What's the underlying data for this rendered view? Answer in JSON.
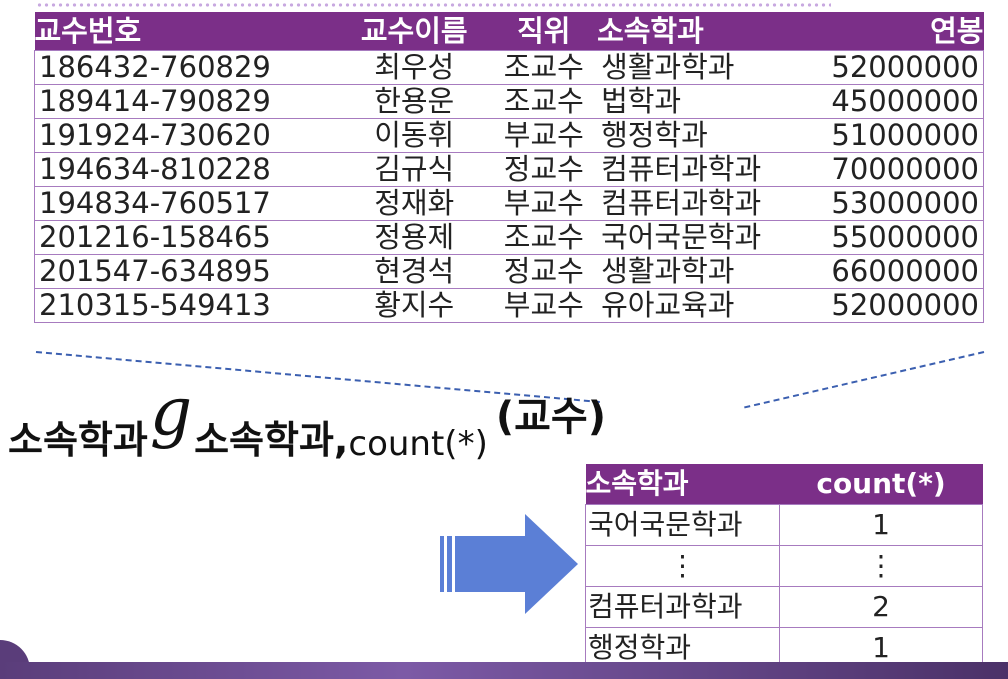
{
  "source_table": {
    "headers": [
      "교수번호",
      "교수이름",
      "직위",
      "소속학과",
      "연봉"
    ],
    "rows": [
      [
        "186432-760829",
        "최우성",
        "조교수",
        "생활과학과",
        "52000000"
      ],
      [
        "189414-790829",
        "한용운",
        "조교수",
        "법학과",
        "45000000"
      ],
      [
        "191924-730620",
        "이동휘",
        "부교수",
        "행정학과",
        "51000000"
      ],
      [
        "194634-810228",
        "김규식",
        "정교수",
        "컴퓨터과학과",
        "70000000"
      ],
      [
        "194834-760517",
        "정재화",
        "부교수",
        "컴퓨터과학과",
        "53000000"
      ],
      [
        "201216-158465",
        "정용제",
        "조교수",
        "국어국문학과",
        "55000000"
      ],
      [
        "201547-634895",
        "현경석",
        "정교수",
        "생활과학과",
        "66000000"
      ],
      [
        "210315-549413",
        "황지수",
        "부교수",
        "유아교육과",
        "52000000"
      ]
    ]
  },
  "expression": {
    "group_attr": "소속학과",
    "operator": "𝑔",
    "result_attrs": "소속학과,",
    "aggregate": "count(*)",
    "relation": "(교수)"
  },
  "result_table": {
    "headers": [
      "소속학과",
      "count(*)"
    ],
    "rows": [
      [
        "국어국문학과",
        "1"
      ],
      [
        "⋮",
        "⋮"
      ],
      [
        "컴퓨터과학과",
        "2"
      ],
      [
        "행정학과",
        "1"
      ]
    ]
  },
  "colors": {
    "header_bg": "#7b2f88",
    "border": "#a77bbf",
    "dashed_line": "#3b5fb0",
    "arrow": "#5b7fd6"
  },
  "icons": [
    "right-arrow-icon"
  ]
}
